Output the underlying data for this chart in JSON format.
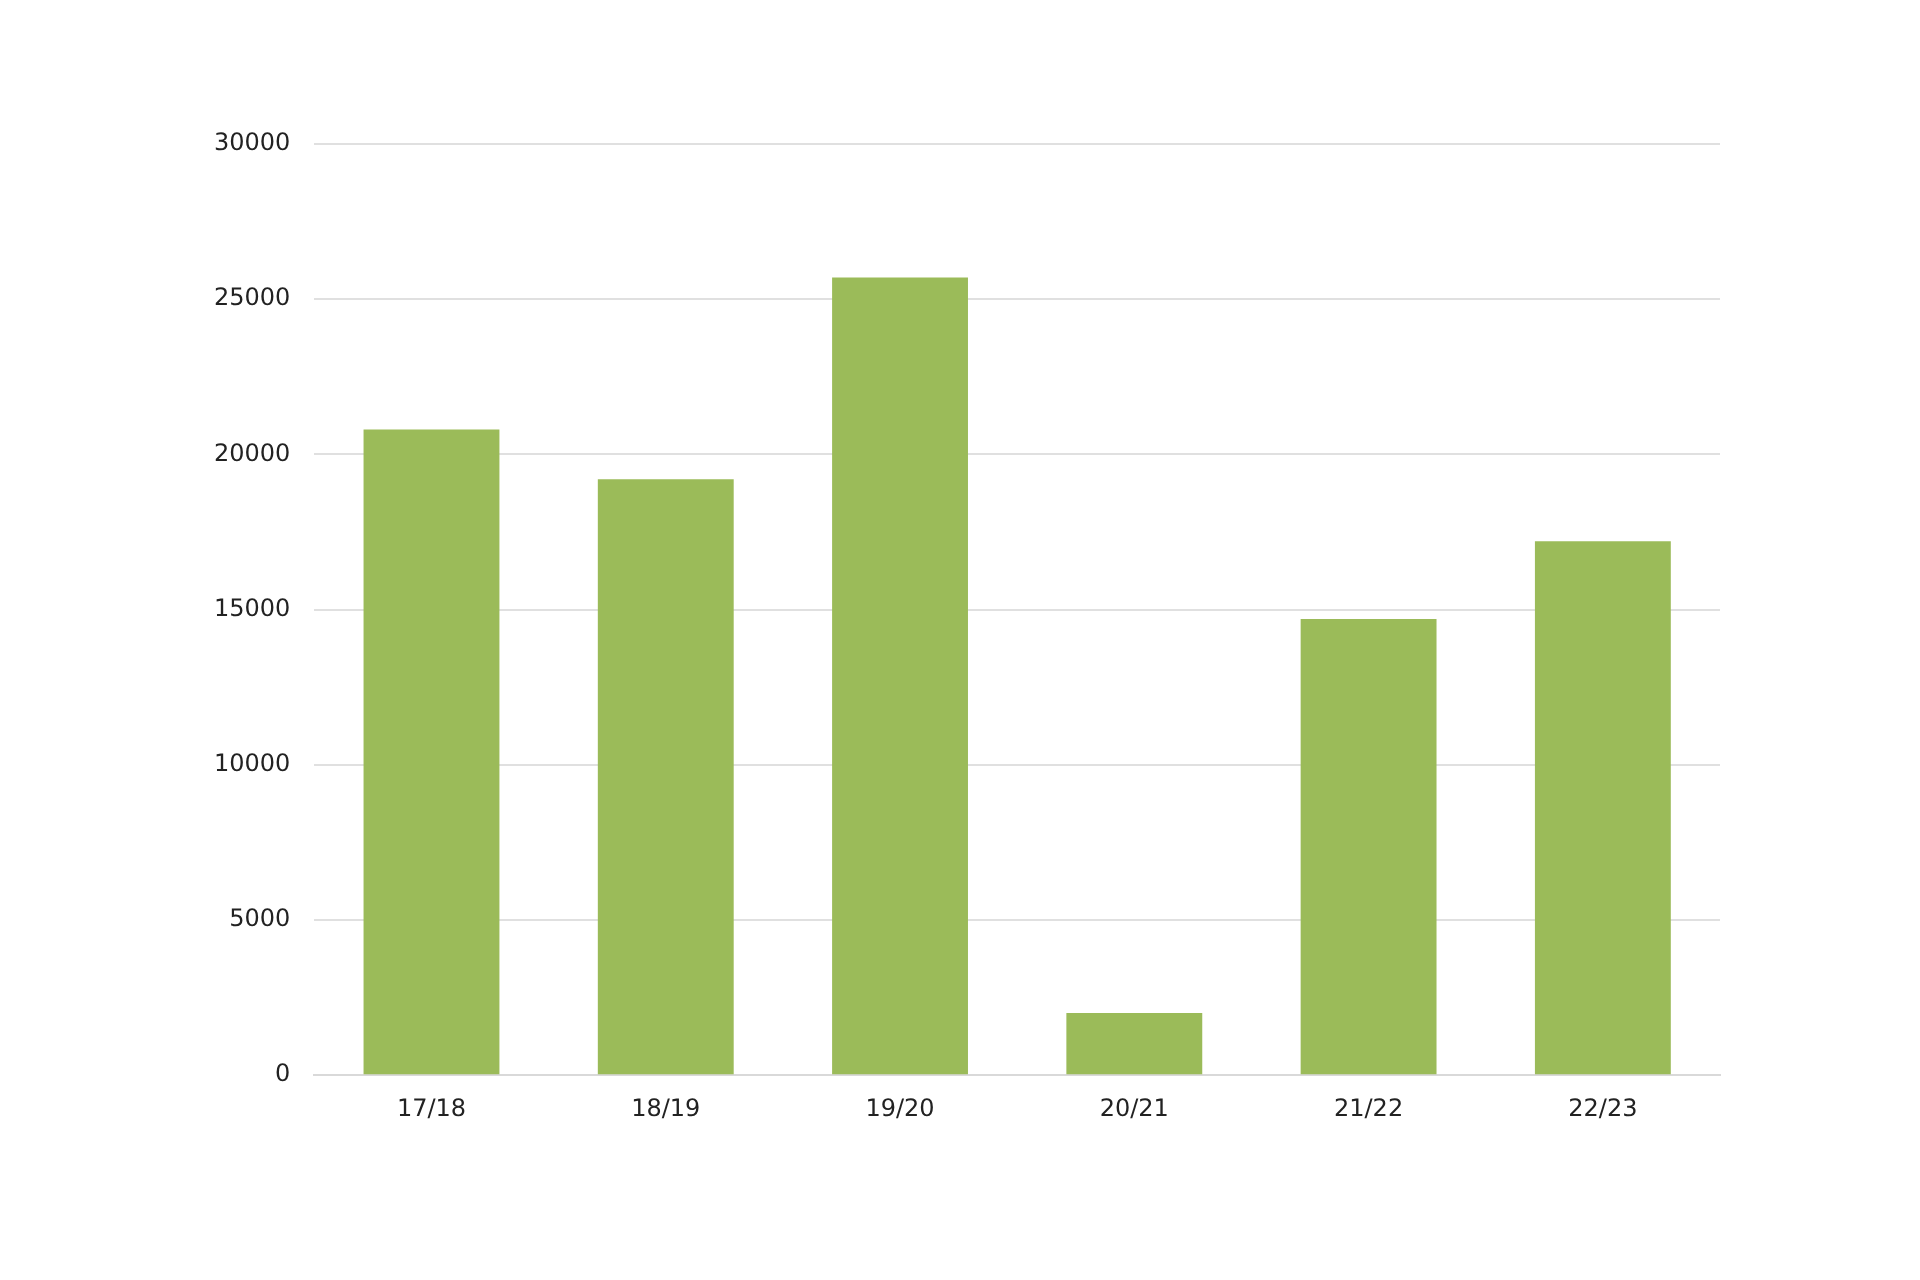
{
  "chart_data": {
    "type": "bar",
    "categories": [
      "17/18",
      "18/19",
      "19/20",
      "20/21",
      "21/22",
      "22/23"
    ],
    "values": [
      20800,
      19200,
      25700,
      2000,
      14700,
      17200
    ],
    "color": "#9bbb59",
    "ylim": [
      0,
      30000
    ],
    "yticks": [
      0,
      5000,
      10000,
      15000,
      20000,
      25000,
      30000
    ],
    "grid": "y",
    "legend": false
  }
}
